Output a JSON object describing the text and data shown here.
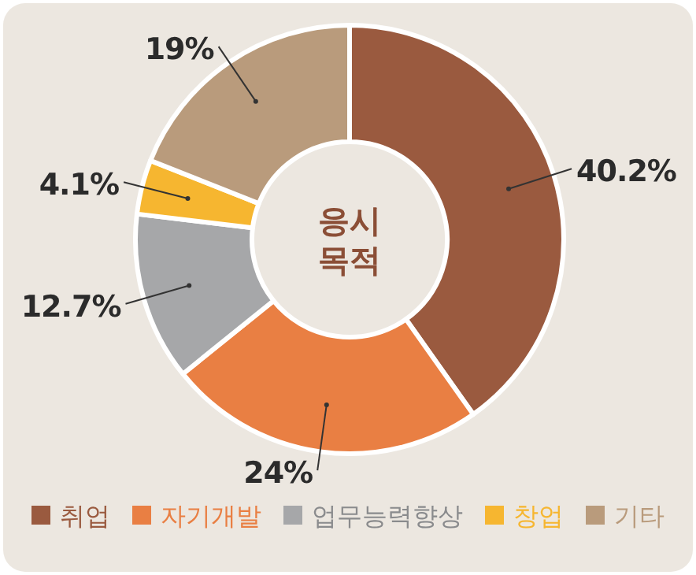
{
  "chart_data": {
    "type": "donut",
    "title": "응시 목적",
    "categories": [
      "취업",
      "자기개발",
      "업무능력향상",
      "창업",
      "기타"
    ],
    "values": [
      40.2,
      24,
      12.7,
      4.1,
      19
    ],
    "colors": [
      "#9a5a3f",
      "#e97f43",
      "#a6a7a9",
      "#f6b630",
      "#b99b7c"
    ],
    "value_labels": [
      "40.2%",
      "24%",
      "12.7%",
      "4.1%",
      "19%"
    ],
    "legend": "bottom"
  }
}
